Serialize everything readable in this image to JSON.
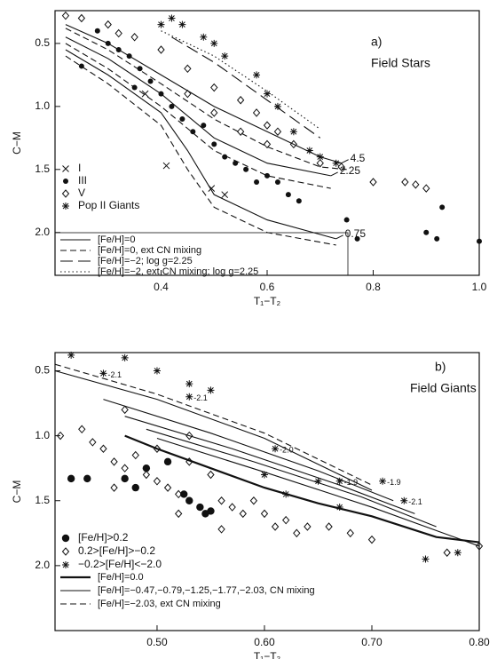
{
  "chart_data": [
    {
      "type": "scatter",
      "panel_label": "a)",
      "title": "Field Stars",
      "x_label": "T₁−T₂",
      "y_label": "C−M",
      "xlim": [
        0.2,
        1.0
      ],
      "ylim": [
        0.24,
        2.34
      ],
      "y_inverted": true,
      "xticks": [
        0.4,
        0.6,
        0.8,
        {
          "value": 1,
          "label": "1.0"
        }
      ],
      "yticks": [
        0.5,
        {
          "value": 1,
          "label": "1.0"
        },
        1.5,
        {
          "value": 2,
          "label": "2.0"
        }
      ],
      "series": [
        {
          "name": "I",
          "marker": "cross",
          "color": "#111",
          "x": [
            0.41,
            0.495,
            0.37,
            0.52
          ],
          "values": [
            1.47,
            1.65,
            0.9,
            1.7
          ]
        },
        {
          "name": "III",
          "marker": "dot",
          "color": "#111",
          "x": [
            0.28,
            0.3,
            0.32,
            0.34,
            0.36,
            0.38,
            0.4,
            0.42,
            0.44,
            0.46,
            0.48,
            0.5,
            0.52,
            0.54,
            0.56,
            0.58,
            0.6,
            0.62,
            0.64,
            0.66,
            0.75,
            0.77,
            0.9,
            0.93,
            0.92,
            1.0,
            0.25,
            0.35
          ],
          "values": [
            0.4,
            0.5,
            0.55,
            0.6,
            0.7,
            0.8,
            0.9,
            1.0,
            1.1,
            1.2,
            1.15,
            1.3,
            1.4,
            1.45,
            1.5,
            1.6,
            1.55,
            1.6,
            1.7,
            1.75,
            1.9,
            2.05,
            2.0,
            1.8,
            2.05,
            2.07,
            0.68,
            0.85
          ]
        },
        {
          "name": "V",
          "marker": "diamond",
          "color": "#111",
          "x": [
            0.22,
            0.25,
            0.3,
            0.35,
            0.4,
            0.45,
            0.5,
            0.55,
            0.58,
            0.6,
            0.62,
            0.65,
            0.5,
            0.55,
            0.6,
            0.7,
            0.74,
            0.8,
            0.86,
            0.88,
            0.9,
            0.45,
            0.32
          ],
          "values": [
            0.28,
            0.3,
            0.35,
            0.45,
            0.55,
            0.7,
            0.85,
            0.95,
            1.05,
            1.15,
            1.2,
            1.3,
            1.05,
            1.2,
            1.3,
            1.45,
            1.48,
            1.6,
            1.6,
            1.62,
            1.65,
            0.9,
            0.42
          ]
        },
        {
          "name": "Pop II Giants",
          "marker": "asterisk",
          "color": "#111",
          "x": [
            0.44,
            0.48,
            0.5,
            0.52,
            0.58,
            0.6,
            0.62,
            0.65,
            0.68,
            0.7,
            0.73,
            0.4,
            0.42
          ],
          "values": [
            0.35,
            0.45,
            0.5,
            0.6,
            0.75,
            0.9,
            1.0,
            1.2,
            1.35,
            1.4,
            1.45,
            0.35,
            0.3
          ]
        }
      ],
      "curves": [
        {
          "style": "solid",
          "label": "4.5",
          "x": [
            0.22,
            0.3,
            0.4,
            0.5,
            0.6,
            0.7,
            0.74
          ],
          "values": [
            0.35,
            0.5,
            0.75,
            1.0,
            1.2,
            1.4,
            1.45
          ]
        },
        {
          "style": "dashed",
          "x": [
            0.22,
            0.3,
            0.4,
            0.5,
            0.6,
            0.7,
            0.75
          ],
          "values": [
            0.38,
            0.55,
            0.82,
            1.1,
            1.32,
            1.48,
            1.5
          ]
        },
        {
          "style": "solid",
          "label": "2.25",
          "x": [
            0.22,
            0.3,
            0.4,
            0.5,
            0.6,
            0.72
          ],
          "values": [
            0.45,
            0.62,
            0.9,
            1.25,
            1.45,
            1.55
          ]
        },
        {
          "style": "dashed",
          "x": [
            0.22,
            0.3,
            0.4,
            0.5,
            0.6,
            0.72
          ],
          "values": [
            0.5,
            0.7,
            1.0,
            1.35,
            1.55,
            1.65
          ]
        },
        {
          "style": "solid",
          "label": "0.75",
          "x": [
            0.22,
            0.3,
            0.4,
            0.45,
            0.5,
            0.6,
            0.73
          ],
          "values": [
            0.55,
            0.75,
            1.05,
            1.35,
            1.7,
            1.9,
            2.05
          ]
        },
        {
          "style": "dashed",
          "x": [
            0.22,
            0.3,
            0.4,
            0.45,
            0.5,
            0.6,
            0.73
          ],
          "values": [
            0.6,
            0.82,
            1.15,
            1.5,
            1.8,
            2.0,
            2.1
          ]
        },
        {
          "style": "longdash",
          "x": [
            0.42,
            0.5,
            0.6,
            0.7
          ],
          "values": [
            0.45,
            0.65,
            0.95,
            1.25
          ]
        },
        {
          "style": "dotted",
          "x": [
            0.4,
            0.5,
            0.6,
            0.7
          ],
          "values": [
            0.4,
            0.6,
            0.88,
            1.18
          ]
        }
      ],
      "legend_lines": [
        {
          "label": "[Fe/H]=0",
          "style": "solid"
        },
        {
          "label": "[Fe/H]=0, ext CN mixing",
          "style": "dashed"
        },
        {
          "label": "[Fe/H]=−2; log g=2.25",
          "style": "longdash"
        },
        {
          "label": "[Fe/H]=−2, ext CN mixing; log g=2.25",
          "style": "dotted"
        }
      ]
    },
    {
      "type": "scatter",
      "panel_label": "b)",
      "title": "Field Giants",
      "x_label": "T₁−T₂",
      "y_label": "C−M",
      "xlim": [
        0.405,
        0.8
      ],
      "ylim": [
        0.36,
        2.5
      ],
      "y_inverted": true,
      "xticks": [
        {
          "value": 0.5,
          "label": "0.50"
        },
        {
          "value": 0.6,
          "label": "0.60"
        },
        {
          "value": 0.7,
          "label": "0.70"
        },
        {
          "value": 0.8,
          "label": "0.80"
        }
      ],
      "yticks": [
        0.5,
        {
          "value": 1,
          "label": "1.0"
        },
        1.5,
        {
          "value": 2,
          "label": "2.0"
        }
      ],
      "series": [
        {
          "name": "[Fe/H]>0.2",
          "marker": "bigdot",
          "color": "#111",
          "x": [
            0.42,
            0.435,
            0.47,
            0.48,
            0.49,
            0.51,
            0.53,
            0.55,
            0.545,
            0.54,
            0.525
          ],
          "values": [
            1.33,
            1.33,
            1.33,
            1.4,
            1.25,
            1.2,
            1.5,
            1.58,
            1.6,
            1.55,
            1.45
          ]
        },
        {
          "name": "0.2>[Fe/H]>−0.2",
          "marker": "diamond",
          "color": "#111",
          "x": [
            0.41,
            0.43,
            0.44,
            0.45,
            0.46,
            0.47,
            0.48,
            0.49,
            0.5,
            0.51,
            0.52,
            0.53,
            0.55,
            0.56,
            0.57,
            0.58,
            0.59,
            0.6,
            0.61,
            0.62,
            0.63,
            0.64,
            0.66,
            0.68,
            0.7,
            0.46,
            0.52,
            0.5,
            0.47,
            0.56,
            0.77,
            0.8,
            0.53
          ],
          "values": [
            1.0,
            0.95,
            1.05,
            1.1,
            1.2,
            1.25,
            1.15,
            1.3,
            1.35,
            1.4,
            1.45,
            1.2,
            1.3,
            1.5,
            1.55,
            1.6,
            1.5,
            1.6,
            1.7,
            1.65,
            1.75,
            1.7,
            1.7,
            1.75,
            1.8,
            1.4,
            1.6,
            1.1,
            0.8,
            1.72,
            1.9,
            1.85,
            1.0
          ]
        },
        {
          "name": "−0.2>[Fe/H]<−2.0",
          "marker": "asterisk",
          "color": "#111",
          "x": [
            0.42,
            0.45,
            0.47,
            0.5,
            0.53,
            0.53,
            0.55,
            0.61,
            0.67,
            0.71,
            0.73,
            0.65,
            0.6,
            0.75,
            0.78,
            0.67,
            0.62
          ],
          "values": [
            0.38,
            0.52,
            0.4,
            0.5,
            0.6,
            0.7,
            0.65,
            1.1,
            1.35,
            1.35,
            1.5,
            1.35,
            1.3,
            1.95,
            1.9,
            1.55,
            1.45
          ],
          "point_labels": [
            null,
            "-2.1",
            null,
            null,
            null,
            "-2.1",
            null,
            "-2.0",
            "-1.9",
            "-1.9",
            "-2.1",
            null,
            null,
            null,
            null,
            null,
            null
          ]
        }
      ],
      "curves": [
        {
          "style": "thick",
          "x": [
            0.47,
            0.5,
            0.55,
            0.6,
            0.65,
            0.7,
            0.76,
            0.8
          ],
          "values": [
            1.0,
            1.1,
            1.25,
            1.4,
            1.52,
            1.62,
            1.78,
            1.82
          ]
        },
        {
          "style": "solid",
          "x": [
            0.405,
            0.5,
            0.6,
            0.7
          ],
          "values": [
            0.5,
            0.72,
            1.02,
            1.42
          ]
        },
        {
          "style": "solid",
          "x": [
            0.45,
            0.55,
            0.65,
            0.72
          ],
          "values": [
            0.72,
            0.98,
            1.27,
            1.5
          ]
        },
        {
          "style": "solid",
          "x": [
            0.47,
            0.57,
            0.67,
            0.74
          ],
          "values": [
            0.85,
            1.1,
            1.38,
            1.6
          ]
        },
        {
          "style": "solid",
          "x": [
            0.49,
            0.59,
            0.69,
            0.76
          ],
          "values": [
            0.95,
            1.2,
            1.47,
            1.7
          ]
        },
        {
          "style": "solid",
          "x": [
            0.5,
            0.6,
            0.7,
            0.8
          ],
          "values": [
            1.02,
            1.28,
            1.55,
            1.85
          ]
        },
        {
          "style": "dashed",
          "x": [
            0.405,
            0.5,
            0.6,
            0.7
          ],
          "values": [
            0.45,
            0.68,
            0.98,
            1.38
          ]
        }
      ],
      "legend_lines": [
        {
          "label": "[Fe/H]=0.0",
          "style": "thick"
        },
        {
          "label": "[Fe/H]=−0.47,−0.79,−1.25,−1.77,−2.03, CN mixing",
          "style": "solid"
        },
        {
          "label": "[Fe/H]=−2.03, ext CN mixing",
          "style": "dashed"
        }
      ]
    }
  ]
}
